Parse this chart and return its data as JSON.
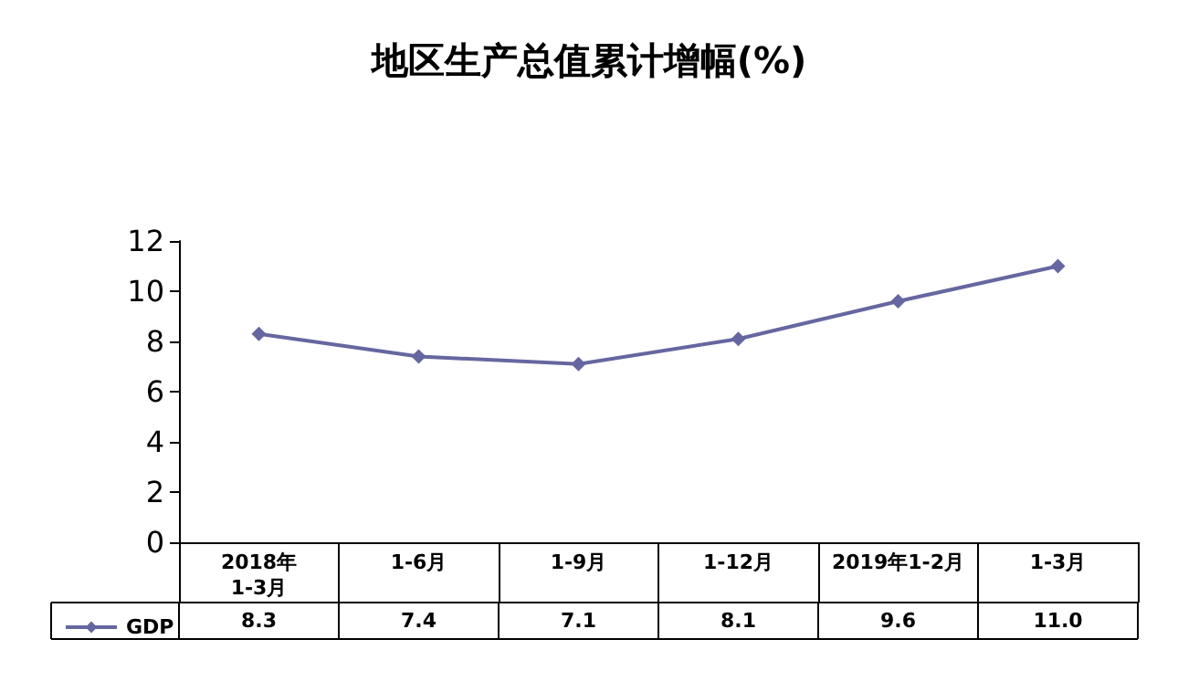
{
  "chart_data": {
    "type": "line",
    "title": "地区生产总值累计增幅(%)",
    "categories": [
      "2018年\n1-3月",
      "1-6月",
      "1-9月",
      "1-12月",
      "2019年1-2月",
      "1-3月"
    ],
    "series": [
      {
        "name": "GDP",
        "color": "#6666a0",
        "values": [
          8.3,
          7.4,
          7.1,
          8.1,
          9.6,
          11.0
        ],
        "value_labels": [
          "8.3",
          "7.4",
          "7.1",
          "8.1",
          "9.6",
          "11.0"
        ]
      }
    ],
    "ylim": [
      0,
      12
    ],
    "yticks": [
      0,
      2,
      4,
      6,
      8,
      10,
      12
    ],
    "grid": false,
    "legend": "bottom left",
    "marker": "diamond",
    "line_style": "solid"
  }
}
